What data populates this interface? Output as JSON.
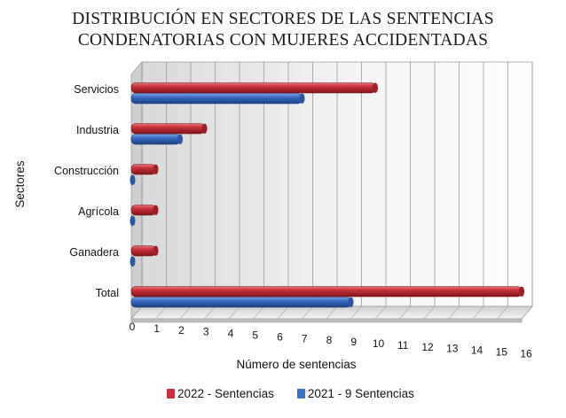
{
  "title_lines": [
    "DISTRIBUCIÓN EN SECTORES DE LAS SENTENCIAS",
    "CONDENATORIAS CON MUJERES ACCIDENTADAS"
  ],
  "legend": {
    "items": [
      "2022 - Sentencias",
      "2021 - 9 Sentencias"
    ]
  },
  "colors": {
    "series_2022": "#c8323a",
    "series_2021": "#3a6fc4"
  },
  "chart_data": {
    "type": "bar",
    "orientation": "horizontal",
    "title": "DISTRIBUCIÓN EN SECTORES DE LAS SENTENCIAS CONDENATORIAS CON MUJERES ACCIDENTADAS",
    "xlabel": "Número de sentencias",
    "ylabel": "Sectores",
    "categories": [
      "Servicios",
      "Industria",
      "Construcción",
      "Agrícola",
      "Ganadera",
      "Total"
    ],
    "series": [
      {
        "name": "2022 - Sentencias",
        "values": [
          10,
          3,
          1,
          1,
          1,
          16
        ]
      },
      {
        "name": "2021 - 9 Sentencias",
        "values": [
          7,
          2,
          0,
          0,
          0,
          9
        ]
      }
    ],
    "xlim": [
      0,
      16
    ],
    "xticks": [
      "0",
      "1",
      "2",
      "3",
      "4",
      "5",
      "6",
      "7",
      "8",
      "9",
      "10",
      "11",
      "12",
      "13",
      "14",
      "15",
      "16"
    ],
    "grid": true,
    "legend_position": "bottom"
  }
}
